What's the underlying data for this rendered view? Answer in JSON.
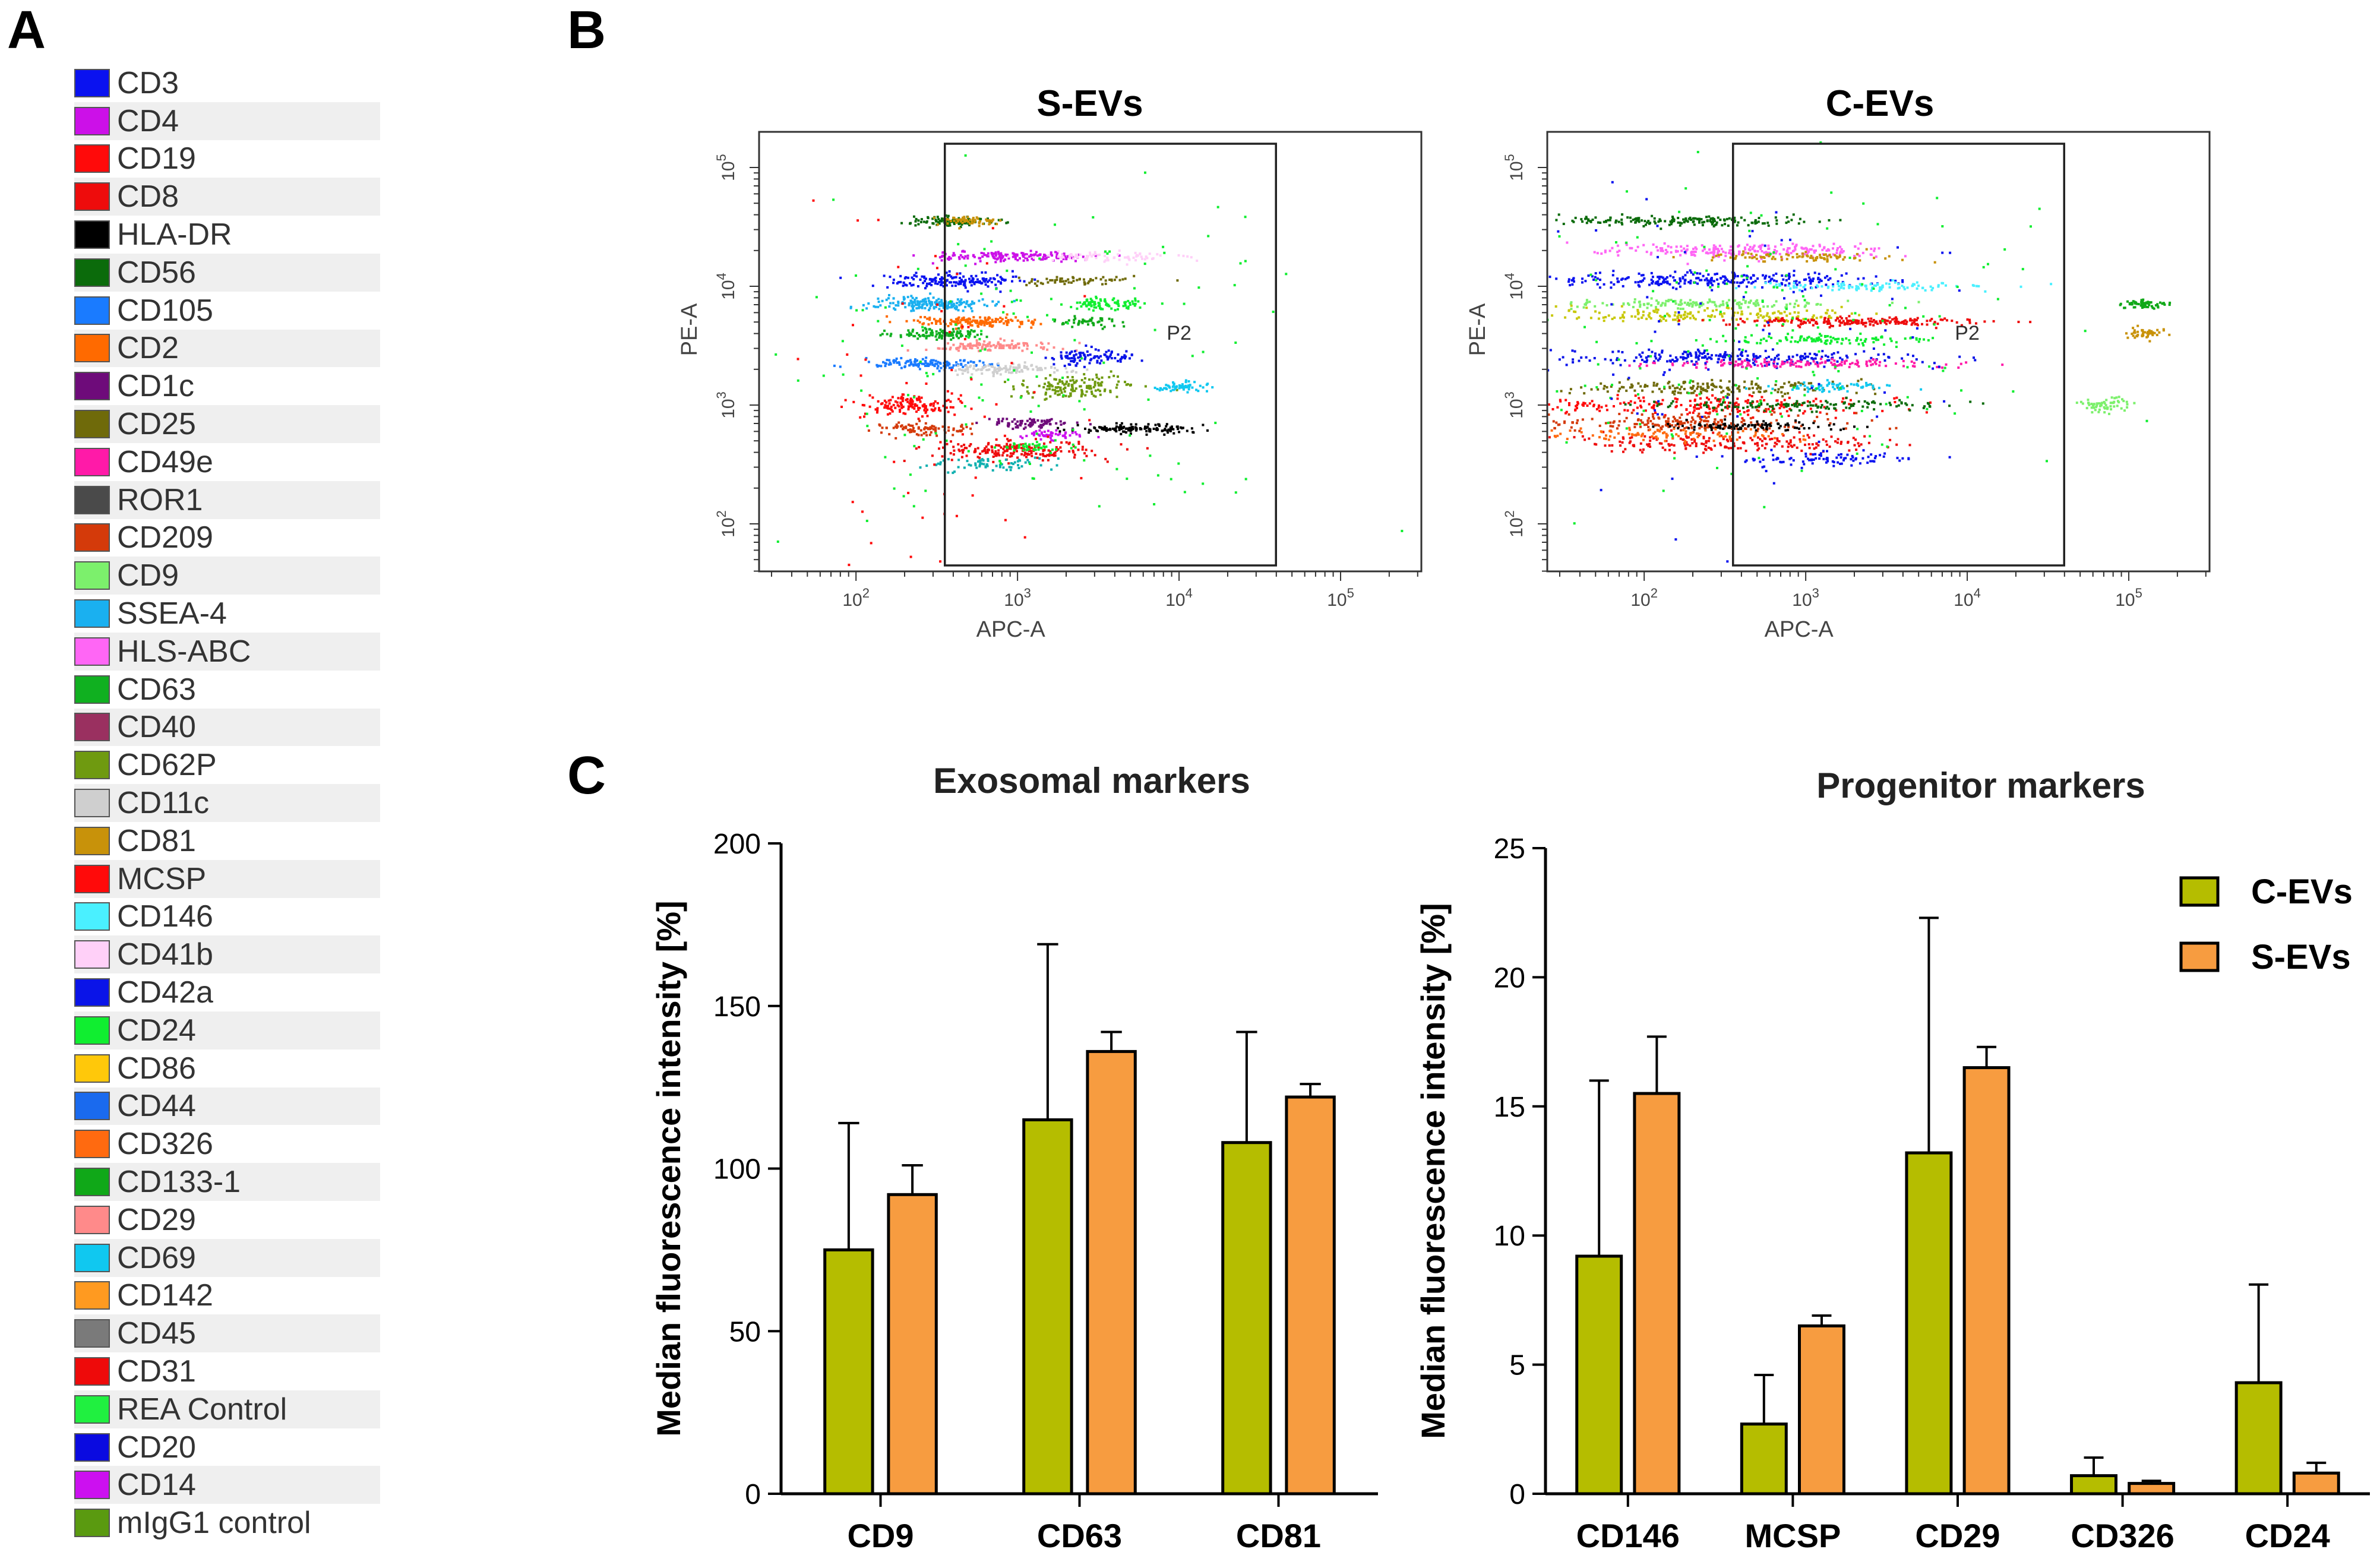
{
  "panel_labels": {
    "a": "A",
    "b": "B",
    "c": "C"
  },
  "legend_a": [
    {
      "label": "CD3",
      "color": "#0a12f0"
    },
    {
      "label": "CD4",
      "color": "#cc10e8"
    },
    {
      "label": "CD19",
      "color": "#ff0a0a"
    },
    {
      "label": "CD8",
      "color": "#ee0c0c"
    },
    {
      "label": "HLA-DR",
      "color": "#000000"
    },
    {
      "label": "CD56",
      "color": "#0b6b0b"
    },
    {
      "label": "CD105",
      "color": "#1a7bff"
    },
    {
      "label": "CD2",
      "color": "#ff6a00"
    },
    {
      "label": "CD1c",
      "color": "#6e0b7a"
    },
    {
      "label": "CD25",
      "color": "#6f6a0a"
    },
    {
      "label": "CD49e",
      "color": "#ff1aa8"
    },
    {
      "label": "ROR1",
      "color": "#4a4a4a"
    },
    {
      "label": "CD209",
      "color": "#d43a0a"
    },
    {
      "label": "CD9",
      "color": "#7cf06c"
    },
    {
      "label": "SSEA-4",
      "color": "#1ab0f0"
    },
    {
      "label": "HLS-ABC",
      "color": "#ff66f5"
    },
    {
      "label": "CD63",
      "color": "#10b020"
    },
    {
      "label": "CD40",
      "color": "#9a3060"
    },
    {
      "label": "CD62P",
      "color": "#6f9a10"
    },
    {
      "label": "CD11c",
      "color": "#cfcfcf"
    },
    {
      "label": "CD81",
      "color": "#c8920a"
    },
    {
      "label": "MCSP",
      "color": "#ff0a0a"
    },
    {
      "label": "CD146",
      "color": "#4af0ff"
    },
    {
      "label": "CD41b",
      "color": "#ffd0f8"
    },
    {
      "label": "CD42a",
      "color": "#0a14e8"
    },
    {
      "label": "CD24",
      "color": "#10ee30"
    },
    {
      "label": "CD86",
      "color": "#ffc80a"
    },
    {
      "label": "CD44",
      "color": "#1a6aee"
    },
    {
      "label": "CD326",
      "color": "#ff6a10"
    },
    {
      "label": "CD133-1",
      "color": "#10a818"
    },
    {
      "label": "CD29",
      "color": "#ff8a8a"
    },
    {
      "label": "CD69",
      "color": "#10c8f0"
    },
    {
      "label": "CD142",
      "color": "#ff9a20"
    },
    {
      "label": "CD45",
      "color": "#7a7a7a"
    },
    {
      "label": "CD31",
      "color": "#ee0a0a"
    },
    {
      "label": "REA Control",
      "color": "#20f040"
    },
    {
      "label": "CD20",
      "color": "#0a0ae0"
    },
    {
      "label": "CD14",
      "color": "#cc10f0"
    },
    {
      "label": "mIgG1 control",
      "color": "#5a9a10"
    }
  ],
  "flow_plots": [
    {
      "title": "S-EVs",
      "xlabel": "APC-A",
      "ylabel": "PE-A",
      "gate_label": "P2",
      "x_ticks": [
        "10^2",
        "10^3",
        "10^4",
        "10^5"
      ],
      "y_ticks": [
        "10^2",
        "10^3",
        "10^4",
        "10^5"
      ],
      "x_range": [
        1.4,
        5.5
      ],
      "y_range": [
        1.6,
        5.3
      ],
      "gate": {
        "x": [
          2.55,
          4.6
        ],
        "y": [
          1.65,
          5.2
        ]
      },
      "clusters": [
        {
          "x": 2.6,
          "y": 4.55,
          "sx": 0.12,
          "sy": 0.02,
          "n": 120,
          "color": "#0b6b0b"
        },
        {
          "x": 2.7,
          "y": 4.55,
          "sx": 0.1,
          "sy": 0.02,
          "n": 60,
          "color": "#c8920a"
        },
        {
          "x": 2.95,
          "y": 4.25,
          "sx": 0.25,
          "sy": 0.02,
          "n": 160,
          "color": "#cc10e8"
        },
        {
          "x": 3.5,
          "y": 4.25,
          "sx": 0.25,
          "sy": 0.02,
          "n": 80,
          "color": "#ffd0f8"
        },
        {
          "x": 2.6,
          "y": 4.05,
          "sx": 0.2,
          "sy": 0.03,
          "n": 180,
          "color": "#0a12f0"
        },
        {
          "x": 3.35,
          "y": 4.05,
          "sx": 0.2,
          "sy": 0.02,
          "n": 60,
          "color": "#6f6a0a"
        },
        {
          "x": 2.45,
          "y": 3.85,
          "sx": 0.18,
          "sy": 0.03,
          "n": 180,
          "color": "#1ab0f0"
        },
        {
          "x": 3.55,
          "y": 3.85,
          "sx": 0.12,
          "sy": 0.03,
          "n": 90,
          "color": "#10ee30"
        },
        {
          "x": 2.75,
          "y": 3.7,
          "sx": 0.2,
          "sy": 0.02,
          "n": 150,
          "color": "#ff6a00"
        },
        {
          "x": 3.45,
          "y": 3.7,
          "sx": 0.1,
          "sy": 0.02,
          "n": 50,
          "color": "#10a818"
        },
        {
          "x": 2.5,
          "y": 3.6,
          "sx": 0.15,
          "sy": 0.02,
          "n": 110,
          "color": "#10b020"
        },
        {
          "x": 2.85,
          "y": 3.5,
          "sx": 0.2,
          "sy": 0.02,
          "n": 120,
          "color": "#ff8a8a"
        },
        {
          "x": 3.45,
          "y": 3.4,
          "sx": 0.15,
          "sy": 0.03,
          "n": 100,
          "color": "#0a14e8"
        },
        {
          "x": 2.4,
          "y": 3.35,
          "sx": 0.18,
          "sy": 0.02,
          "n": 130,
          "color": "#1a7bff"
        },
        {
          "x": 2.95,
          "y": 3.3,
          "sx": 0.18,
          "sy": 0.02,
          "n": 120,
          "color": "#cfcfcf"
        },
        {
          "x": 3.35,
          "y": 3.15,
          "sx": 0.18,
          "sy": 0.04,
          "n": 150,
          "color": "#6f9a10"
        },
        {
          "x": 4.0,
          "y": 3.15,
          "sx": 0.1,
          "sy": 0.02,
          "n": 60,
          "color": "#10c8f0"
        },
        {
          "x": 2.35,
          "y": 3.0,
          "sx": 0.15,
          "sy": 0.04,
          "n": 140,
          "color": "#ff0a0a"
        },
        {
          "x": 2.4,
          "y": 2.8,
          "sx": 0.15,
          "sy": 0.03,
          "n": 90,
          "color": "#d43a0a"
        },
        {
          "x": 3.1,
          "y": 2.85,
          "sx": 0.15,
          "sy": 0.02,
          "n": 80,
          "color": "#6e0b7a"
        },
        {
          "x": 3.75,
          "y": 2.8,
          "sx": 0.2,
          "sy": 0.02,
          "n": 130,
          "color": "#000000"
        },
        {
          "x": 3.2,
          "y": 2.75,
          "sx": 0.1,
          "sy": 0.02,
          "n": 50,
          "color": "#cc10f0"
        },
        {
          "x": 3.0,
          "y": 2.62,
          "sx": 0.25,
          "sy": 0.04,
          "n": 200,
          "color": "#ee0c0c"
        },
        {
          "x": 2.85,
          "y": 2.5,
          "sx": 0.2,
          "sy": 0.03,
          "n": 70,
          "color": "#10b0b0"
        },
        {
          "x": 3.1,
          "y": 2.65,
          "sx": 0.1,
          "sy": 0.02,
          "n": 40,
          "color": "#10ee30"
        },
        {
          "x": 3.0,
          "y": 3.3,
          "sx": 0.9,
          "sy": 0.7,
          "n": 140,
          "color": "#10ee30"
        },
        {
          "x": 2.5,
          "y": 3.0,
          "sx": 0.4,
          "sy": 0.9,
          "n": 70,
          "color": "#ff0a0a"
        }
      ]
    },
    {
      "title": "C-EVs",
      "xlabel": "APC-A",
      "ylabel": "PE-A",
      "gate_label": "P2",
      "x_ticks": [
        "10^2",
        "10^3",
        "10^4",
        "10^5"
      ],
      "y_ticks": [
        "10^2",
        "10^3",
        "10^4",
        "10^5"
      ],
      "x_range": [
        1.4,
        5.5
      ],
      "y_range": [
        1.6,
        5.3
      ],
      "gate": {
        "x": [
          2.55,
          4.6
        ],
        "y": [
          1.65,
          5.2
        ]
      },
      "clusters": [
        {
          "x": 2.2,
          "y": 4.55,
          "sx": 0.35,
          "sy": 0.02,
          "n": 180,
          "color": "#0b6b0b"
        },
        {
          "x": 2.6,
          "y": 4.3,
          "sx": 0.45,
          "sy": 0.03,
          "n": 220,
          "color": "#ff66f5"
        },
        {
          "x": 2.9,
          "y": 4.25,
          "sx": 0.3,
          "sy": 0.02,
          "n": 90,
          "color": "#c8920a"
        },
        {
          "x": 2.4,
          "y": 4.05,
          "sx": 0.5,
          "sy": 0.03,
          "n": 260,
          "color": "#0a12f0"
        },
        {
          "x": 3.4,
          "y": 4.0,
          "sx": 0.35,
          "sy": 0.02,
          "n": 110,
          "color": "#4af0ff"
        },
        {
          "x": 2.3,
          "y": 3.85,
          "sx": 0.45,
          "sy": 0.02,
          "n": 150,
          "color": "#7cf06c"
        },
        {
          "x": 2.4,
          "y": 3.75,
          "sx": 0.5,
          "sy": 0.03,
          "n": 180,
          "color": "#c8c80a"
        },
        {
          "x": 3.3,
          "y": 3.7,
          "sx": 0.4,
          "sy": 0.02,
          "n": 200,
          "color": "#ee0c0c"
        },
        {
          "x": 3.1,
          "y": 3.55,
          "sx": 0.35,
          "sy": 0.02,
          "n": 110,
          "color": "#10ee30"
        },
        {
          "x": 2.5,
          "y": 3.4,
          "sx": 0.55,
          "sy": 0.03,
          "n": 240,
          "color": "#0a14e8"
        },
        {
          "x": 2.9,
          "y": 3.35,
          "sx": 0.45,
          "sy": 0.02,
          "n": 150,
          "color": "#ff1aa8"
        },
        {
          "x": 2.4,
          "y": 3.15,
          "sx": 0.5,
          "sy": 0.03,
          "n": 180,
          "color": "#6f6a0a"
        },
        {
          "x": 3.2,
          "y": 3.15,
          "sx": 0.2,
          "sy": 0.02,
          "n": 70,
          "color": "#10c8f0"
        },
        {
          "x": 2.4,
          "y": 3.0,
          "sx": 0.55,
          "sy": 0.04,
          "n": 220,
          "color": "#ff0a0a"
        },
        {
          "x": 3.0,
          "y": 3.0,
          "sx": 0.4,
          "sy": 0.02,
          "n": 130,
          "color": "#0b6b0b"
        },
        {
          "x": 2.3,
          "y": 2.85,
          "sx": 0.45,
          "sy": 0.04,
          "n": 220,
          "color": "#d43a0a"
        },
        {
          "x": 2.7,
          "y": 2.82,
          "sx": 0.3,
          "sy": 0.02,
          "n": 100,
          "color": "#000000"
        },
        {
          "x": 2.5,
          "y": 2.68,
          "sx": 0.5,
          "sy": 0.04,
          "n": 200,
          "color": "#ee0c0c"
        },
        {
          "x": 2.2,
          "y": 2.75,
          "sx": 0.4,
          "sy": 0.03,
          "n": 100,
          "color": "#ff6a10"
        },
        {
          "x": 3.15,
          "y": 2.55,
          "sx": 0.25,
          "sy": 0.03,
          "n": 90,
          "color": "#0a12f0"
        },
        {
          "x": 5.1,
          "y": 3.85,
          "sx": 0.08,
          "sy": 0.02,
          "n": 60,
          "color": "#10a818"
        },
        {
          "x": 5.1,
          "y": 3.6,
          "sx": 0.06,
          "sy": 0.02,
          "n": 50,
          "color": "#c8920a"
        },
        {
          "x": 4.85,
          "y": 3.0,
          "sx": 0.08,
          "sy": 0.03,
          "n": 60,
          "color": "#7cf06c"
        },
        {
          "x": 2.6,
          "y": 3.6,
          "sx": 0.9,
          "sy": 0.6,
          "n": 180,
          "color": "#10ee30"
        },
        {
          "x": 2.4,
          "y": 3.6,
          "sx": 0.7,
          "sy": 0.7,
          "n": 90,
          "color": "#0a12f0"
        }
      ]
    }
  ],
  "chart_data": [
    {
      "type": "bar",
      "title": "Exosomal markers",
      "categories": [
        "CD9",
        "CD63",
        "CD81"
      ],
      "series": [
        {
          "name": "C-EVs",
          "color": "#b5bd00",
          "values": [
            75,
            115,
            108
          ],
          "errors": [
            39,
            54,
            34
          ]
        },
        {
          "name": "S-EVs",
          "color": "#f79c40",
          "values": [
            92,
            136,
            122
          ],
          "errors": [
            9,
            6,
            4
          ]
        }
      ],
      "xlabel": "",
      "ylabel": "Median fluorescence intensity [%]",
      "ylim": [
        0,
        200
      ],
      "yticks": [
        0,
        50,
        100,
        150,
        200
      ],
      "legend": "none"
    },
    {
      "type": "bar",
      "title": "Progenitor markers",
      "categories": [
        "CD146",
        "MCSP",
        "CD29",
        "CD326",
        "CD24"
      ],
      "series": [
        {
          "name": "C-EVs",
          "color": "#b5bd00",
          "values": [
            9.2,
            2.7,
            13.2,
            0.7,
            4.3
          ],
          "errors": [
            6.8,
            1.9,
            9.1,
            0.7,
            3.8
          ]
        },
        {
          "name": "S-EVs",
          "color": "#f79c40",
          "values": [
            15.5,
            6.5,
            16.5,
            0.4,
            0.8
          ],
          "errors": [
            2.2,
            0.4,
            0.8,
            0.1,
            0.4
          ]
        }
      ],
      "xlabel": "",
      "ylabel": "Median fluorescence intensity [%]",
      "ylim": [
        0,
        25
      ],
      "yticks": [
        0,
        5,
        10,
        15,
        20,
        25
      ],
      "legend": "top-right"
    }
  ]
}
